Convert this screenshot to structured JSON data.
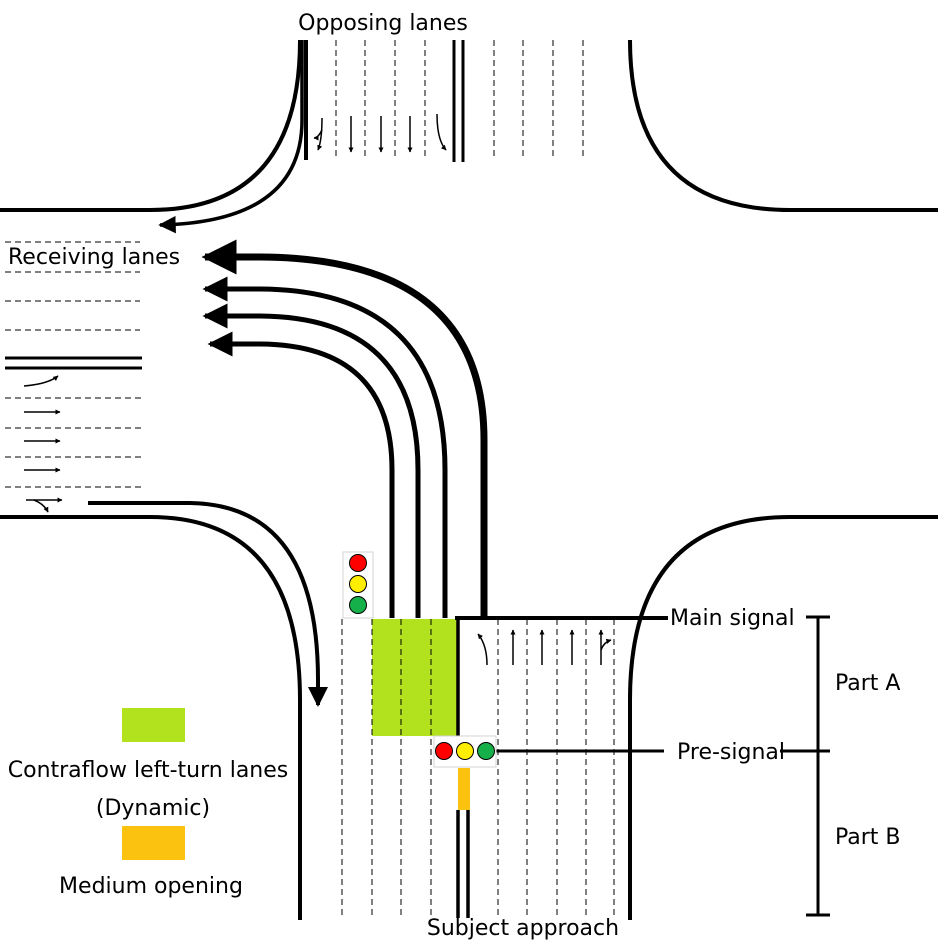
{
  "labels": {
    "opposing_lanes": "Opposing lanes",
    "receiving_lanes": "Receiving lanes",
    "main_signal": "Main signal",
    "pre_signal": "Pre-signal",
    "part_a": "Part A",
    "part_b": "Part B",
    "subject_approach": "Subject approach"
  },
  "legend": {
    "contraflow_line1": "Contraflow left-turn lanes",
    "contraflow_line2": "(Dynamic)",
    "medium_opening": "Medium opening"
  },
  "colors": {
    "contraflow_green": "#b2e21e",
    "medium_orange": "#fbc310",
    "signal_red": "#ff0000",
    "signal_yellow": "#ffee00",
    "signal_green": "#16b04a",
    "line": "#000000"
  },
  "icons": [
    "traffic-light-vertical",
    "traffic-light-horizontal",
    "lane-arrow"
  ]
}
